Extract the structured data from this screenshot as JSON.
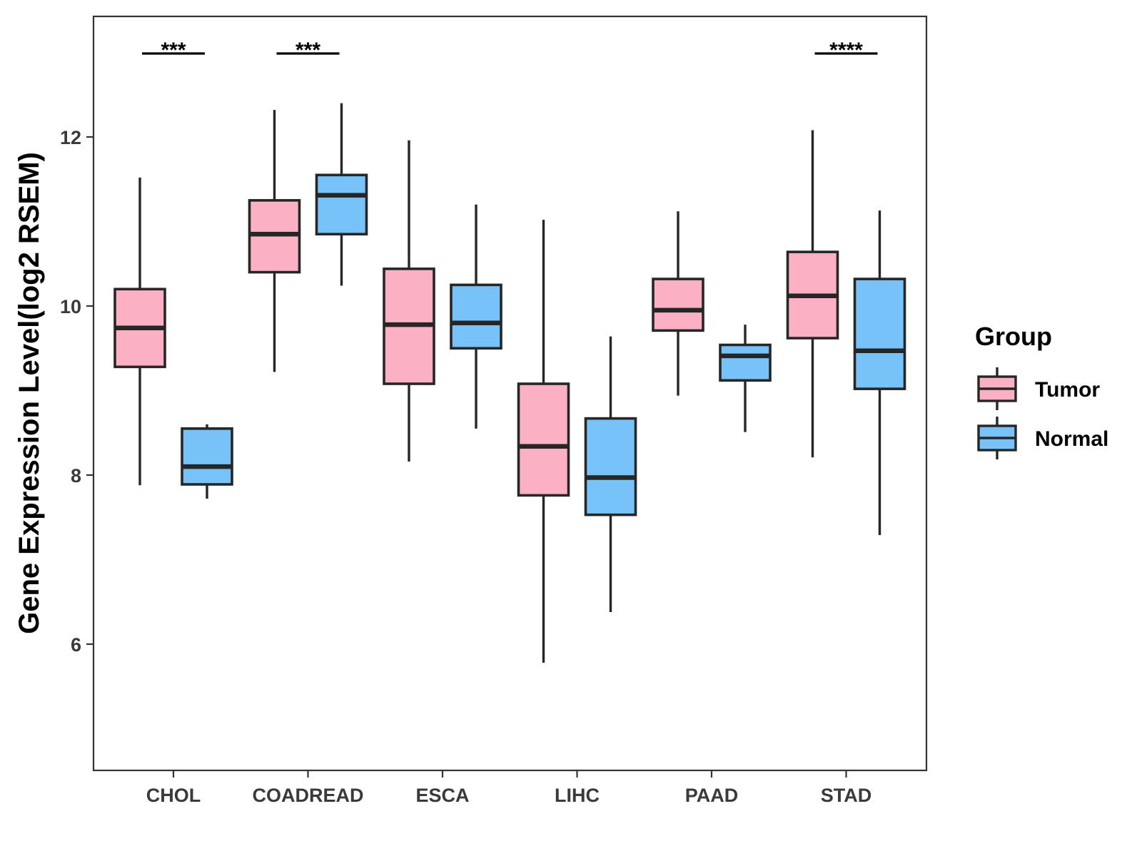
{
  "chart_data": {
    "type": "boxplot",
    "title": "",
    "xlabel": "",
    "ylabel": "Gene Expression Level(log2 RSEM)",
    "ylim": [
      4.5,
      13.4
    ],
    "yticks": [
      6,
      8,
      10,
      12
    ],
    "grid": false,
    "categories": [
      "CHOL",
      "COADREAD",
      "ESCA",
      "LIHC",
      "PAAD",
      "STAD"
    ],
    "legend": {
      "title": "Group",
      "position": "right",
      "entries": [
        "Tumor",
        "Normal"
      ]
    },
    "series": [
      {
        "name": "Tumor",
        "color": "#FBB1C3",
        "boxes": [
          {
            "min": 7.88,
            "q1": 9.28,
            "median": 9.74,
            "q3": 10.2,
            "max": 11.52
          },
          {
            "min": 9.22,
            "q1": 10.4,
            "median": 10.85,
            "q3": 11.25,
            "max": 12.32
          },
          {
            "min": 8.16,
            "q1": 9.08,
            "median": 9.78,
            "q3": 10.44,
            "max": 11.96
          },
          {
            "min": 5.78,
            "q1": 7.76,
            "median": 8.34,
            "q3": 9.08,
            "max": 11.02
          },
          {
            "min": 8.94,
            "q1": 9.71,
            "median": 9.95,
            "q3": 10.32,
            "max": 11.12
          },
          {
            "min": 8.21,
            "q1": 9.62,
            "median": 10.12,
            "q3": 10.64,
            "max": 12.08
          }
        ]
      },
      {
        "name": "Normal",
        "color": "#77C2F8",
        "boxes": [
          {
            "min": 7.72,
            "q1": 7.89,
            "median": 8.1,
            "q3": 8.55,
            "max": 8.6
          },
          {
            "min": 10.24,
            "q1": 10.85,
            "median": 11.31,
            "q3": 11.55,
            "max": 12.4
          },
          {
            "min": 8.55,
            "q1": 9.5,
            "median": 9.8,
            "q3": 10.25,
            "max": 11.2
          },
          {
            "min": 6.38,
            "q1": 7.53,
            "median": 7.97,
            "q3": 8.67,
            "max": 9.64
          },
          {
            "min": 8.51,
            "q1": 9.12,
            "median": 9.41,
            "q3": 9.54,
            "max": 9.78
          },
          {
            "min": 7.29,
            "q1": 9.02,
            "median": 9.47,
            "q3": 10.32,
            "max": 11.13
          }
        ]
      }
    ],
    "annotations": [
      {
        "category": "CHOL",
        "label": "***"
      },
      {
        "category": "COADREAD",
        "label": "***"
      },
      {
        "category": "STAD",
        "label": "****"
      }
    ]
  }
}
